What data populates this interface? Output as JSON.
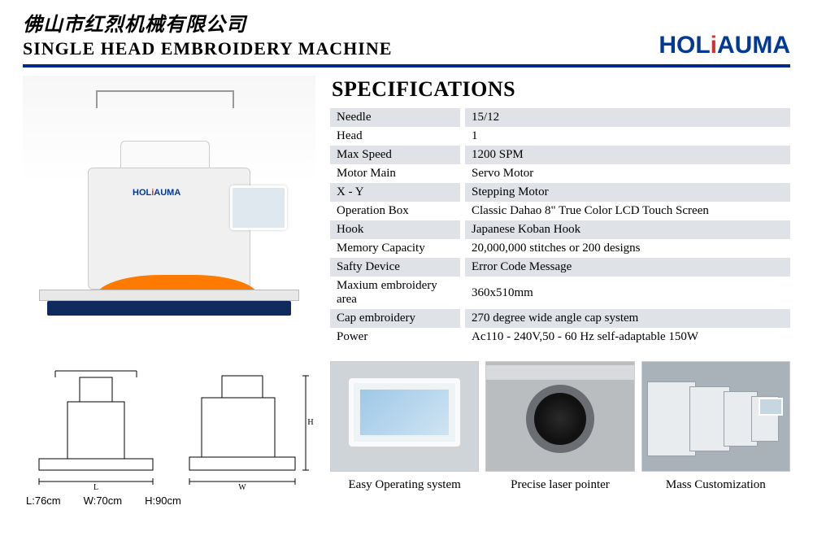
{
  "header": {
    "chinese_title": "佛山市红烈机械有限公司",
    "english_title": "SINGLE HEAD EMBROIDERY MACHINE",
    "brand_hol": "HOL",
    "brand_i": "i",
    "brand_auma": "AUMA"
  },
  "colors": {
    "divider": "#002a8a",
    "band_bg": "#dfe3e8",
    "brand_blue": "#003a96",
    "brand_red": "#d32f2f",
    "fabric": "#ff7a00"
  },
  "spec_title": "SPECIFICATIONS",
  "specs": [
    {
      "label": "Needle",
      "value": "15/12",
      "band": true
    },
    {
      "label": "Head",
      "value": "1",
      "band": false
    },
    {
      "label": "Max Speed",
      "value": "1200 SPM",
      "band": true
    },
    {
      "label": "Motor    Main",
      "value": "Servo Motor",
      "band": false
    },
    {
      "label": "X - Y",
      "value": "Stepping Motor",
      "band": true
    },
    {
      "label": "Operation Box",
      "value": "Classic Dahao 8\" True Color LCD Touch Screen",
      "band": false
    },
    {
      "label": "Hook",
      "value": "Japanese Koban Hook",
      "band": true
    },
    {
      "label": "Memory Capacity",
      "value": "20,000,000 stitches or 200 designs",
      "band": false
    },
    {
      "label": "Safty Device",
      "value": "Error Code Message",
      "band": true
    },
    {
      "label": "Maxium embroidery area",
      "value": "360x510mm",
      "band": false
    },
    {
      "label": "Cap embroidery",
      "value": "270 degree wide angle cap system",
      "band": true
    },
    {
      "label": "Power",
      "value": "Ac110 - 240V,50 - 60 Hz self-adaptable 150W",
      "band": false
    }
  ],
  "dimensions": {
    "L": "L:76cm",
    "W": "W:70cm",
    "H": "H:90cm",
    "axis_L": "L",
    "axis_W": "W",
    "axis_H": "H"
  },
  "product_brand_label": "HOLiAUMA",
  "thumbs": [
    {
      "caption": "Easy Operating system"
    },
    {
      "caption": "Precise laser pointer"
    },
    {
      "caption": "Mass Customization"
    }
  ]
}
